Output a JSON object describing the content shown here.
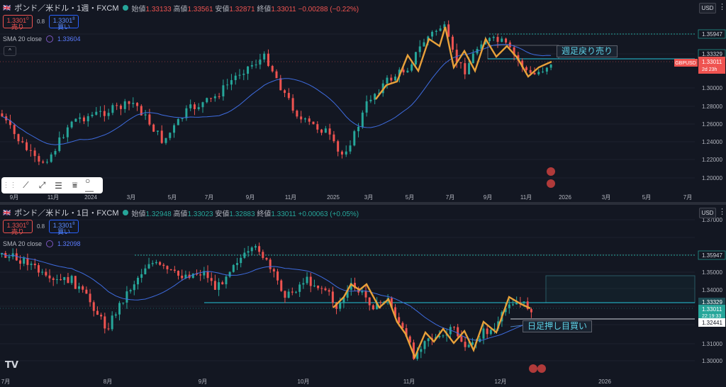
{
  "top": {
    "symbol": "ポンド／米ドル・1週・FXCM",
    "ohlc": {
      "o_label": "始値",
      "o": "1.33133",
      "h_label": "高値",
      "h": "1.33561",
      "l_label": "安値",
      "l": "1.32871",
      "c_label": "終値",
      "c": "1.33011",
      "chg": "−0.00288 (−0.22%)"
    },
    "sell_price": "1.3301",
    "sell_sup": "0",
    "sell_label": "売り",
    "spread": "0.8",
    "buy_price": "1.3301",
    "buy_sup": "8",
    "buy_label": "買い",
    "sma_label": "SMA 20 close",
    "sma_value": "1.33604",
    "currency": "USD",
    "annotation": "週足戻り売り",
    "price_axis": [
      "1.35947",
      "1.33329",
      "1.30000",
      "1.28000",
      "1.26000",
      "1.24000",
      "1.22000",
      "1.20000"
    ],
    "tag_symbol": "GBPUSD",
    "tag_price": "1.33011",
    "tag_time": "2d 23h",
    "time_axis": [
      "9月",
      "11月",
      "2024",
      "3月",
      "5月",
      "7月",
      "9月",
      "11月",
      "2025",
      "3月",
      "5月",
      "7月",
      "9月",
      "11月",
      "2026",
      "3月",
      "5月",
      "7月"
    ]
  },
  "bottom": {
    "symbol": "ポンド／米ドル・1日・FXCM",
    "ohlc": {
      "o_label": "始値",
      "o": "1.32948",
      "h_label": "高値",
      "h": "1.33023",
      "l_label": "安値",
      "l": "1.32883",
      "c_label": "終値",
      "c": "1.33011",
      "chg": "+0.00063 (+0.05%)"
    },
    "sell_price": "1.3301",
    "sell_sup": "0",
    "sell_label": "売り",
    "spread": "0.8",
    "buy_price": "1.3301",
    "buy_sup": "8",
    "buy_label": "買い",
    "sma_label": "SMA 20 close",
    "sma_value": "1.32098",
    "currency": "USD",
    "annotation": "日足押し目買い",
    "price_axis": [
      "1.37000",
      "1.35947",
      "1.35000",
      "1.34000",
      "1.33329",
      "1.33011",
      "1.32441",
      "1.31000",
      "1.30000"
    ],
    "tag_time": "22:19:33",
    "time_axis": [
      "7月",
      "8月",
      "9月",
      "10月",
      "11月",
      "12月",
      "2026"
    ]
  },
  "toolbar": {
    "icons": [
      "drag-handle-icon",
      "trendline-icon",
      "ray-icon",
      "parallel-channel-icon",
      "fib-icon",
      "horizontal-ray-icon"
    ]
  },
  "logo": "TV"
}
